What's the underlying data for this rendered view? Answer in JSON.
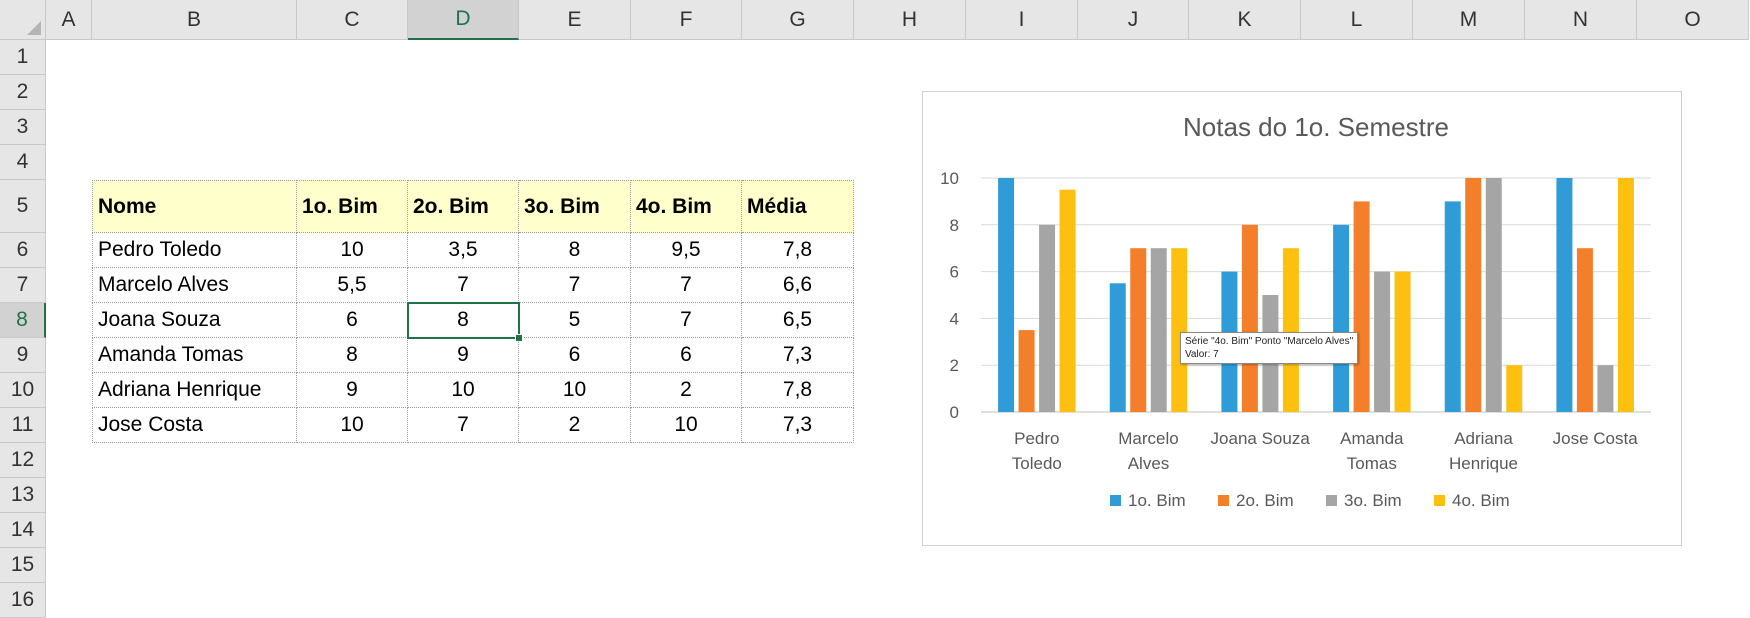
{
  "columns": [
    "A",
    "B",
    "C",
    "D",
    "E",
    "F",
    "G",
    "H",
    "I",
    "J",
    "K",
    "L",
    "M",
    "N",
    "O"
  ],
  "rows": [
    "1",
    "2",
    "3",
    "4",
    "5",
    "6",
    "7",
    "8",
    "9",
    "10",
    "11",
    "12",
    "13",
    "14",
    "15",
    "16"
  ],
  "selected": {
    "column": "D",
    "row": "8"
  },
  "table": {
    "headers": [
      "Nome",
      "1o. Bim",
      "2o. Bim",
      "3o. Bim",
      "4o. Bim",
      "Média"
    ],
    "rows": [
      [
        "Pedro Toledo",
        "10",
        "3,5",
        "8",
        "9,5",
        "7,8"
      ],
      [
        "Marcelo Alves",
        "5,5",
        "7",
        "7",
        "7",
        "6,6"
      ],
      [
        "Joana Souza",
        "6",
        "8",
        "5",
        "7",
        "6,5"
      ],
      [
        "Amanda Tomas",
        "8",
        "9",
        "6",
        "6",
        "7,3"
      ],
      [
        "Adriana Henrique",
        "9",
        "10",
        "10",
        "2",
        "7,8"
      ],
      [
        "Jose Costa",
        "10",
        "7",
        "2",
        "10",
        "7,3"
      ]
    ],
    "header_fill": "#ffffcc"
  },
  "chart_data": {
    "type": "bar",
    "title": "Notas do 1o. Semestre",
    "categories": [
      [
        "Pedro",
        "Toledo"
      ],
      [
        "Marcelo",
        "Alves"
      ],
      [
        "Joana Souza"
      ],
      [
        "Amanda",
        "Tomas"
      ],
      [
        "Adriana",
        "Henrique"
      ],
      [
        "Jose Costa"
      ]
    ],
    "series": [
      {
        "name": "1o. Bim",
        "color": "#2f9bd7",
        "values": [
          10,
          5.5,
          6,
          8,
          9,
          10
        ]
      },
      {
        "name": "2o. Bim",
        "color": "#f47f2a",
        "values": [
          3.5,
          7,
          8,
          9,
          10,
          7
        ]
      },
      {
        "name": "3o. Bim",
        "color": "#a5a5a5",
        "values": [
          8,
          7,
          5,
          6,
          10,
          2
        ]
      },
      {
        "name": "4o. Bim",
        "color": "#fdc010",
        "values": [
          9.5,
          7,
          7,
          6,
          2,
          10
        ]
      }
    ],
    "ylim": [
      0,
      10
    ],
    "yticks": [
      "0",
      "2",
      "4",
      "6",
      "8",
      "10"
    ],
    "grid": true,
    "legend": "bottom"
  },
  "tooltip": {
    "line1": "Série \"4o. Bim\" Ponto \"Marcelo Alves\"",
    "line2": "Valor: 7"
  }
}
